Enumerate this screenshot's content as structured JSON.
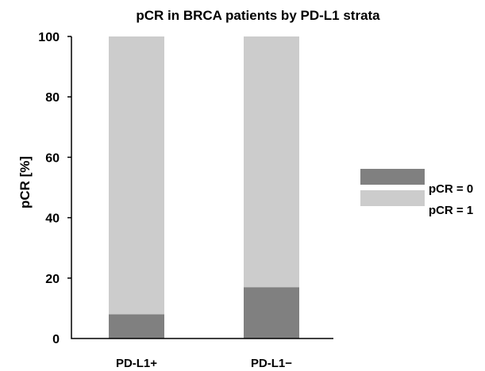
{
  "chart_data": {
    "type": "bar",
    "stacked": true,
    "title": "pCR in BRCA patients by PD-L1 strata",
    "xlabel": "",
    "ylabel": "pCR [%]",
    "ylim": [
      0,
      100
    ],
    "yticks": [
      "0",
      "20",
      "40",
      "60",
      "80",
      "100"
    ],
    "categories": [
      "PD-L1+",
      "PD-L1−"
    ],
    "series": [
      {
        "name": "pCR = 0",
        "values": [
          8,
          17
        ],
        "color": "#808080"
      },
      {
        "name": "pCR = 1",
        "values": [
          92,
          83
        ],
        "color": "#cccccc"
      }
    ],
    "legend_position": "right",
    "grid": false
  }
}
